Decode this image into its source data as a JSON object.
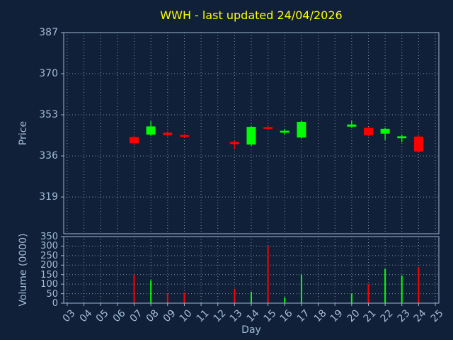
{
  "colors": {
    "background": "#0f2038",
    "text": "#a4bcd8",
    "title": "#ffff00",
    "frame": "#9fb6d4",
    "grid": "#ffffff",
    "up": "#00ff00",
    "down": "#ff0000"
  },
  "chart_data": {
    "type": "candlestick",
    "title": "WWH - last updated 24/04/2026",
    "xlabel": "Day",
    "ylabel_price": "Price",
    "ylabel_volume": "Volume (0000)",
    "legend": "none",
    "grid": "dotted",
    "x_ticks": [
      "03",
      "04",
      "05",
      "06",
      "07",
      "08",
      "09",
      "10",
      "11",
      "12",
      "13",
      "14",
      "15",
      "16",
      "17",
      "18",
      "19",
      "20",
      "21",
      "22",
      "23",
      "24",
      "25"
    ],
    "x_range": [
      2.79,
      25.21
    ],
    "price_ticks": [
      387,
      370,
      353,
      336,
      319
    ],
    "price_range": [
      303.8,
      387
    ],
    "volume_ticks": [
      0,
      50,
      100,
      150,
      200,
      250,
      300,
      350
    ],
    "volume_range": [
      0,
      350
    ],
    "ohlcv": [
      {
        "day": 7,
        "open": 343.8,
        "high": 344.2,
        "low": 340.5,
        "close": 341.2,
        "volume": 150
      },
      {
        "day": 8,
        "open": 344.8,
        "high": 350.3,
        "low": 344.3,
        "close": 348.2,
        "volume": 120
      },
      {
        "day": 9,
        "open": 345.6,
        "high": 346.2,
        "low": 344.0,
        "close": 344.6,
        "volume": 50
      },
      {
        "day": 10,
        "open": 344.6,
        "high": 345.0,
        "low": 343.5,
        "close": 343.9,
        "volume": 55
      },
      {
        "day": 13,
        "open": 341.8,
        "high": 342.3,
        "low": 338.8,
        "close": 340.9,
        "volume": 75
      },
      {
        "day": 14,
        "open": 340.7,
        "high": 348.4,
        "low": 340.2,
        "close": 348.0,
        "volume": 60
      },
      {
        "day": 15,
        "open": 347.9,
        "high": 348.6,
        "low": 347.0,
        "close": 347.2,
        "volume": 300
      },
      {
        "day": 16,
        "open": 345.6,
        "high": 347.2,
        "low": 344.9,
        "close": 346.4,
        "volume": 30
      },
      {
        "day": 17,
        "open": 343.6,
        "high": 350.5,
        "low": 343.2,
        "close": 350.1,
        "volume": 150
      },
      {
        "day": 20,
        "open": 348.1,
        "high": 350.6,
        "low": 347.6,
        "close": 349.0,
        "volume": 50
      },
      {
        "day": 21,
        "open": 347.6,
        "high": 348.0,
        "low": 344.1,
        "close": 344.5,
        "volume": 100
      },
      {
        "day": 22,
        "open": 345.2,
        "high": 347.6,
        "low": 342.6,
        "close": 347.2,
        "volume": 180
      },
      {
        "day": 23,
        "open": 343.3,
        "high": 344.7,
        "low": 341.7,
        "close": 344.1,
        "volume": 145
      },
      {
        "day": 24,
        "open": 344.0,
        "high": 344.4,
        "low": 337.3,
        "close": 337.8,
        "volume": 190
      }
    ]
  }
}
